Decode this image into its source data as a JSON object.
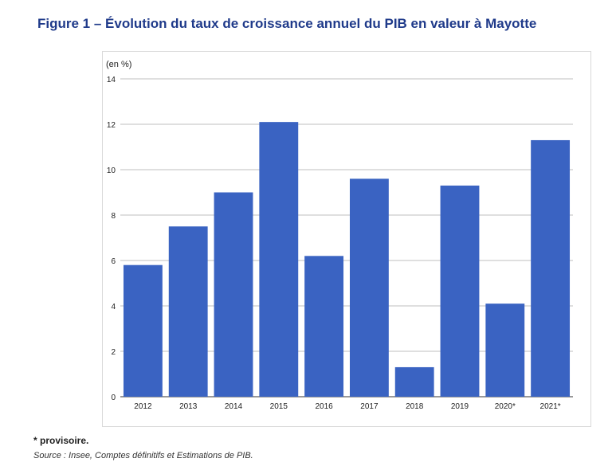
{
  "title": "Figure 1 – Évolution du taux de croissance annuel du PIB en valeur à Mayotte",
  "footnote": "* provisoire.",
  "source": "Source : Insee, Comptes définitifs et Estimations de PIB.",
  "colors": {
    "bar": "#3a63c2",
    "grid": "#bfbfbf",
    "title": "#1f3a8a",
    "axis_text": "#222222"
  },
  "chart_data": {
    "type": "bar",
    "unit_label": "(en %)",
    "categories": [
      "2012",
      "2013",
      "2014",
      "2015",
      "2016",
      "2017",
      "2018",
      "2019",
      "2020*",
      "2021*"
    ],
    "values": [
      5.8,
      7.5,
      9.0,
      12.1,
      6.2,
      9.6,
      1.3,
      9.3,
      4.1,
      11.3
    ],
    "ylim": [
      0,
      14
    ],
    "yticks": [
      0,
      2,
      4,
      6,
      8,
      10,
      12,
      14
    ],
    "grid": true,
    "xlabel": "",
    "ylabel": ""
  }
}
